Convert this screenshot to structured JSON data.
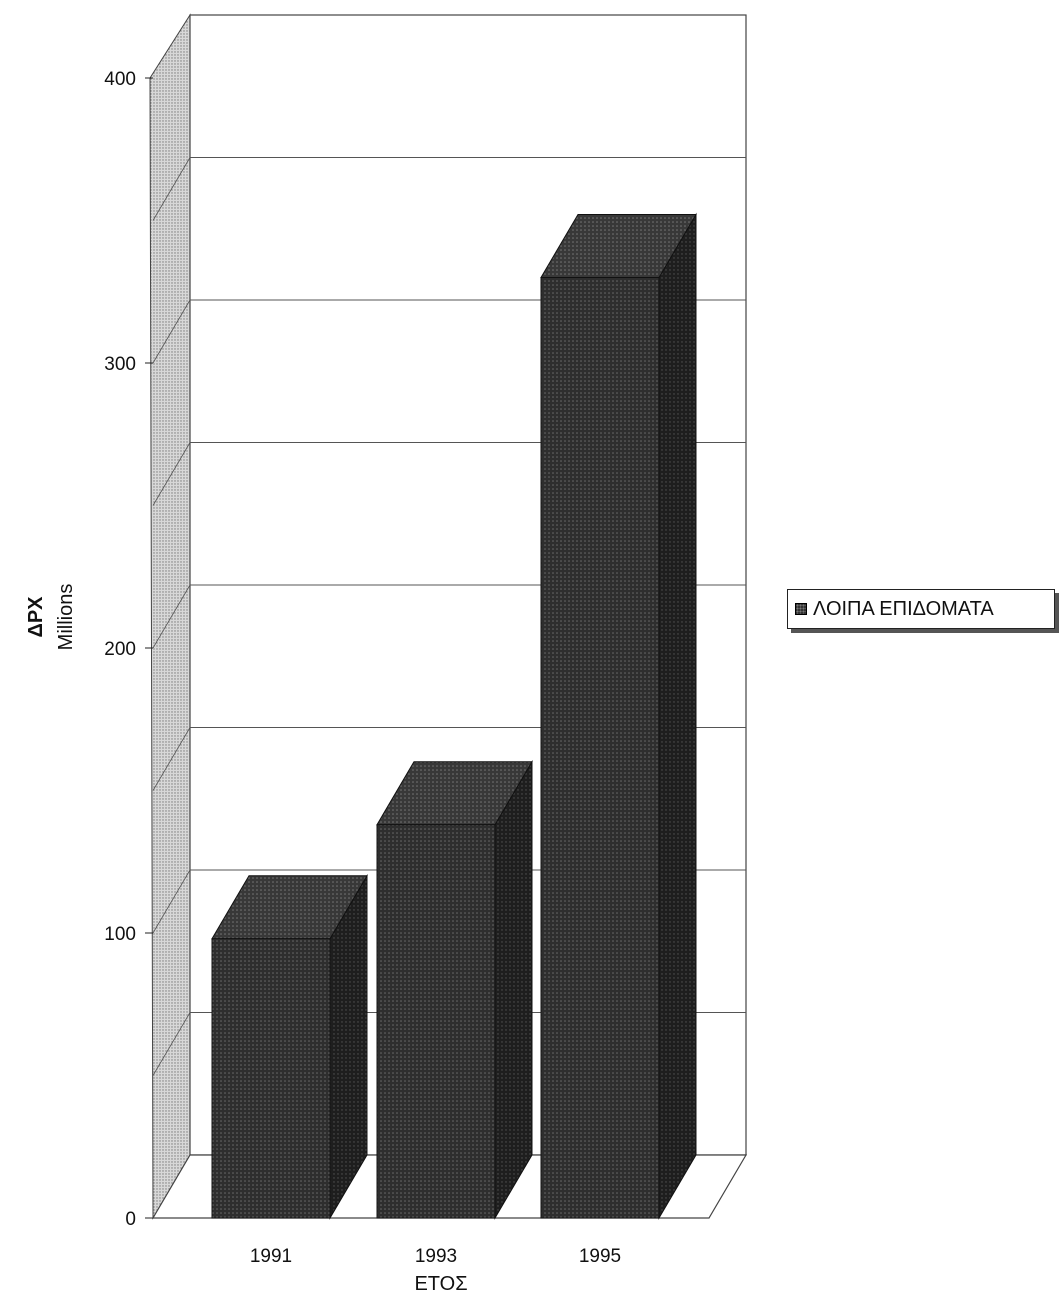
{
  "chart_data": {
    "type": "bar",
    "categories": [
      "1991",
      "1993",
      "1995"
    ],
    "series": [
      {
        "name": "ΛΟΙΠΑ ΕΠΙΔΟΜΑΤΑ",
        "values": [
          98,
          138,
          330
        ]
      }
    ],
    "ylim": [
      0,
      400
    ],
    "yticks": [
      0,
      100,
      200,
      300,
      400
    ],
    "ylabel": "ΔΡΧ",
    "ylabel_unit": "Millions",
    "xlabel": "ΕΤΟΣ",
    "grid": true,
    "legend_position": "right",
    "style": "3d",
    "colors": {
      "bar": "#2e2e2e",
      "bar_side": "#1c1c1c",
      "bar_top": "#3a3a3a",
      "wall": "#bdbdbd"
    }
  }
}
